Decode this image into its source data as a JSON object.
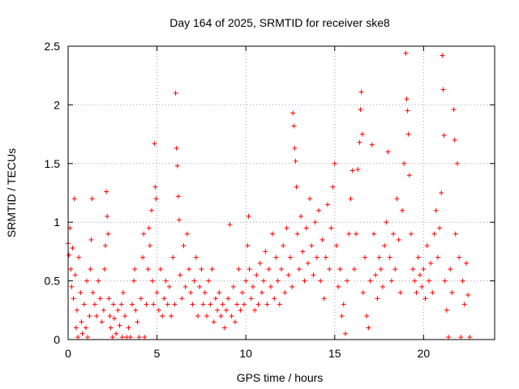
{
  "chart_data": {
    "type": "scatter",
    "title": "Day 164 of 2025, SRMTID for receiver ske8",
    "xlabel": "GPS time / hours",
    "ylabel": "SRMTID / TECUs",
    "xlim": [
      0,
      24
    ],
    "ylim": [
      0,
      2.5
    ],
    "xticks": [
      0,
      5,
      10,
      15,
      20
    ],
    "xtick_labels": [
      "0",
      "5",
      "10",
      "15",
      "20"
    ],
    "yticks": [
      0,
      0.5,
      1,
      1.5,
      2,
      2.5
    ],
    "ytick_labels": [
      "0",
      "0.5",
      "1",
      "1.5",
      "2",
      "2.5"
    ],
    "grid": true,
    "marker": "+",
    "color": "#ff0000",
    "series": [
      {
        "name": "SRMTID",
        "points": [
          [
            0.0,
            0.82
          ],
          [
            0.05,
            0.72
          ],
          [
            0.1,
            0.95
          ],
          [
            0.15,
            0.6
          ],
          [
            0.2,
            0.45
          ],
          [
            0.25,
            0.78
          ],
          [
            0.3,
            0.35
          ],
          [
            0.35,
            1.2
          ],
          [
            0.4,
            0.55
          ],
          [
            0.45,
            0.1
          ],
          [
            0.5,
            0.25
          ],
          [
            0.55,
            0.02
          ],
          [
            0.6,
            0.7
          ],
          [
            0.7,
            0.4
          ],
          [
            0.75,
            0.15
          ],
          [
            0.8,
            0.05
          ],
          [
            0.9,
            0.3
          ],
          [
            1.0,
            0.1
          ],
          [
            1.05,
            0.5
          ],
          [
            1.1,
            0.02
          ],
          [
            1.2,
            0.2
          ],
          [
            1.25,
            0.6
          ],
          [
            1.3,
            0.85
          ],
          [
            1.35,
            1.2
          ],
          [
            1.4,
            0.4
          ],
          [
            1.5,
            0.3
          ],
          [
            1.6,
            0.2
          ],
          [
            1.7,
            0.5
          ],
          [
            1.8,
            0.35
          ],
          [
            1.9,
            0.15
          ],
          [
            2.0,
            0.25
          ],
          [
            2.05,
            0.6
          ],
          [
            2.1,
            0.8
          ],
          [
            2.15,
            1.26
          ],
          [
            2.2,
            1.05
          ],
          [
            2.25,
            0.9
          ],
          [
            2.3,
            0.35
          ],
          [
            2.35,
            0.2
          ],
          [
            2.4,
            0.1
          ],
          [
            2.5,
            0.02
          ],
          [
            2.55,
            0.3
          ],
          [
            2.6,
            0.18
          ],
          [
            2.7,
            0.05
          ],
          [
            2.8,
            0.25
          ],
          [
            2.9,
            0.12
          ],
          [
            3.0,
            0.3
          ],
          [
            3.05,
            0.02
          ],
          [
            3.1,
            0.4
          ],
          [
            3.2,
            0.2
          ],
          [
            3.3,
            0.02
          ],
          [
            3.4,
            0.1
          ],
          [
            3.5,
            0.02
          ],
          [
            3.6,
            0.3
          ],
          [
            3.7,
            0.5
          ],
          [
            3.75,
            0.6
          ],
          [
            3.8,
            0.25
          ],
          [
            3.9,
            0.15
          ],
          [
            4.0,
            0.02
          ],
          [
            4.1,
            0.35
          ],
          [
            4.2,
            0.7
          ],
          [
            4.25,
            0.9
          ],
          [
            4.3,
            0.02
          ],
          [
            4.4,
            0.3
          ],
          [
            4.5,
            0.6
          ],
          [
            4.55,
            0.95
          ],
          [
            4.6,
            0.8
          ],
          [
            4.7,
            1.1
          ],
          [
            4.75,
            0.5
          ],
          [
            4.8,
            0.3
          ],
          [
            4.85,
            1.67
          ],
          [
            4.9,
            1.3
          ],
          [
            4.95,
            1.2
          ],
          [
            5.0,
            0.4
          ],
          [
            5.1,
            0.25
          ],
          [
            5.2,
            0.6
          ],
          [
            5.3,
            0.2
          ],
          [
            5.4,
            0.35
          ],
          [
            5.5,
            0.5
          ],
          [
            5.6,
            0.3
          ],
          [
            5.7,
            0.45
          ],
          [
            5.8,
            0.2
          ],
          [
            5.9,
            0.7
          ],
          [
            6.0,
            0.3
          ],
          [
            6.05,
            2.1
          ],
          [
            6.1,
            1.63
          ],
          [
            6.15,
            1.48
          ],
          [
            6.2,
            1.22
          ],
          [
            6.25,
            1.02
          ],
          [
            6.3,
            0.55
          ],
          [
            6.4,
            0.35
          ],
          [
            6.5,
            0.8
          ],
          [
            6.6,
            0.45
          ],
          [
            6.7,
            0.9
          ],
          [
            6.8,
            0.6
          ],
          [
            6.9,
            0.4
          ],
          [
            7.0,
            0.3
          ],
          [
            7.1,
            0.5
          ],
          [
            7.2,
            0.7
          ],
          [
            7.3,
            0.2
          ],
          [
            7.4,
            0.45
          ],
          [
            7.5,
            0.6
          ],
          [
            7.6,
            0.3
          ],
          [
            7.7,
            0.4
          ],
          [
            7.8,
            0.2
          ],
          [
            7.9,
            0.5
          ],
          [
            8.0,
            0.3
          ],
          [
            8.1,
            0.6
          ],
          [
            8.2,
            0.15
          ],
          [
            8.3,
            0.35
          ],
          [
            8.4,
            0.25
          ],
          [
            8.5,
            0.4
          ],
          [
            8.6,
            0.2
          ],
          [
            8.7,
            0.3
          ],
          [
            8.8,
            0.1
          ],
          [
            8.9,
            0.25
          ],
          [
            9.0,
            0.35
          ],
          [
            9.1,
            0.98
          ],
          [
            9.2,
            0.2
          ],
          [
            9.3,
            0.45
          ],
          [
            9.4,
            0.15
          ],
          [
            9.5,
            0.3
          ],
          [
            9.6,
            0.6
          ],
          [
            9.7,
            0.25
          ],
          [
            9.8,
            0.4
          ],
          [
            9.9,
            0.3
          ],
          [
            10.0,
            0.5
          ],
          [
            10.1,
            0.8
          ],
          [
            10.15,
            1.05
          ],
          [
            10.2,
            0.6
          ],
          [
            10.3,
            0.35
          ],
          [
            10.4,
            0.45
          ],
          [
            10.5,
            0.25
          ],
          [
            10.6,
            0.55
          ],
          [
            10.7,
            0.3
          ],
          [
            10.8,
            0.65
          ],
          [
            10.9,
            0.4
          ],
          [
            11.0,
            0.5
          ],
          [
            11.1,
            0.75
          ],
          [
            11.2,
            0.3
          ],
          [
            11.3,
            0.6
          ],
          [
            11.4,
            0.45
          ],
          [
            11.5,
            0.9
          ],
          [
            11.6,
            0.35
          ],
          [
            11.7,
            0.7
          ],
          [
            11.8,
            0.5
          ],
          [
            11.9,
            0.3
          ],
          [
            12.0,
            0.6
          ],
          [
            12.1,
            0.8
          ],
          [
            12.2,
            0.4
          ],
          [
            12.3,
            0.95
          ],
          [
            12.4,
            0.55
          ],
          [
            12.5,
            0.7
          ],
          [
            12.6,
            0.45
          ],
          [
            12.65,
            1.93
          ],
          [
            12.7,
            1.82
          ],
          [
            12.75,
            1.63
          ],
          [
            12.8,
            1.52
          ],
          [
            12.85,
            1.3
          ],
          [
            12.9,
            0.9
          ],
          [
            13.0,
            0.6
          ],
          [
            13.1,
            1.05
          ],
          [
            13.2,
            0.75
          ],
          [
            13.3,
            0.5
          ],
          [
            13.4,
            0.95
          ],
          [
            13.5,
            0.65
          ],
          [
            13.6,
            1.2
          ],
          [
            13.7,
            0.8
          ],
          [
            13.8,
            0.55
          ],
          [
            13.9,
            1.0
          ],
          [
            14.0,
            0.7
          ],
          [
            14.1,
            1.1
          ],
          [
            14.2,
            0.5
          ],
          [
            14.3,
            0.85
          ],
          [
            14.4,
            0.35
          ],
          [
            14.5,
            0.7
          ],
          [
            14.6,
            1.15
          ],
          [
            14.7,
            0.6
          ],
          [
            14.8,
            0.95
          ],
          [
            14.9,
            1.3
          ],
          [
            15.0,
            1.5
          ],
          [
            15.1,
            0.8
          ],
          [
            15.2,
            0.45
          ],
          [
            15.3,
            0.6
          ],
          [
            15.4,
            0.2
          ],
          [
            15.5,
            0.3
          ],
          [
            15.6,
            0.05
          ],
          [
            15.7,
            0.5
          ],
          [
            15.8,
            0.9
          ],
          [
            15.9,
            1.2
          ],
          [
            16.0,
            1.44
          ],
          [
            16.1,
            0.6
          ],
          [
            16.2,
            0.9
          ],
          [
            16.3,
            1.45
          ],
          [
            16.4,
            1.68
          ],
          [
            16.45,
            1.96
          ],
          [
            16.5,
            2.11
          ],
          [
            16.55,
            1.75
          ],
          [
            16.6,
            0.4
          ],
          [
            16.7,
            0.7
          ],
          [
            16.8,
            0.2
          ],
          [
            16.9,
            0.1
          ],
          [
            17.0,
            0.5
          ],
          [
            17.1,
            1.66
          ],
          [
            17.2,
            0.9
          ],
          [
            17.3,
            0.55
          ],
          [
            17.4,
            0.35
          ],
          [
            17.5,
            0.7
          ],
          [
            17.6,
            0.6
          ],
          [
            17.7,
            0.45
          ],
          [
            17.8,
            0.8
          ],
          [
            17.9,
            1.0
          ],
          [
            18.0,
            1.6
          ],
          [
            18.1,
            0.7
          ],
          [
            18.2,
            0.5
          ],
          [
            18.3,
            0.9
          ],
          [
            18.4,
            0.6
          ],
          [
            18.5,
            1.2
          ],
          [
            18.6,
            0.85
          ],
          [
            18.7,
            0.4
          ],
          [
            18.8,
            1.1
          ],
          [
            18.9,
            1.5
          ],
          [
            19.0,
            2.44
          ],
          [
            19.05,
            2.05
          ],
          [
            19.1,
            1.95
          ],
          [
            19.15,
            1.75
          ],
          [
            19.2,
            1.4
          ],
          [
            19.3,
            0.9
          ],
          [
            19.4,
            0.6
          ],
          [
            19.5,
            0.5
          ],
          [
            19.6,
            0.4
          ],
          [
            19.7,
            0.7
          ],
          [
            19.8,
            0.55
          ],
          [
            19.9,
            0.45
          ],
          [
            20.0,
            0.6
          ],
          [
            20.1,
            0.35
          ],
          [
            20.2,
            0.8
          ],
          [
            20.3,
            0.5
          ],
          [
            20.4,
            0.65
          ],
          [
            20.5,
            0.4
          ],
          [
            20.6,
            0.9
          ],
          [
            20.7,
            1.1
          ],
          [
            20.8,
            0.7
          ],
          [
            20.9,
            0.95
          ],
          [
            21.0,
            1.25
          ],
          [
            21.05,
            2.42
          ],
          [
            21.1,
            2.13
          ],
          [
            21.15,
            1.74
          ],
          [
            21.2,
            0.5
          ],
          [
            21.3,
            0.25
          ],
          [
            21.4,
            0.02
          ],
          [
            21.5,
            0.6
          ],
          [
            21.6,
            0.4
          ],
          [
            21.7,
            1.96
          ],
          [
            21.75,
            1.7
          ],
          [
            21.8,
            0.9
          ],
          [
            21.9,
            1.5
          ],
          [
            22.0,
            0.7
          ],
          [
            22.1,
            0.02
          ],
          [
            22.2,
            0.5
          ],
          [
            22.3,
            0.3
          ],
          [
            22.4,
            0.65
          ],
          [
            22.5,
            0.38
          ],
          [
            22.6,
            0.02
          ]
        ]
      }
    ]
  }
}
